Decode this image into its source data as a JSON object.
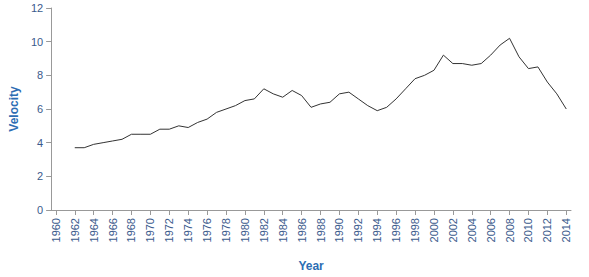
{
  "chart_data": {
    "type": "line",
    "x_label": "Year",
    "y_label": "Velocity",
    "categories": [
      "1960",
      null,
      "1962",
      null,
      "1964",
      null,
      "1966",
      null,
      "1968",
      null,
      "1970",
      null,
      "1972",
      null,
      "1974",
      null,
      "1976",
      null,
      "1978",
      null,
      "1980",
      null,
      "1982",
      null,
      "1984",
      null,
      "1986",
      null,
      "1988",
      null,
      "1990",
      null,
      "1992",
      null,
      "1994",
      null,
      "1996",
      null,
      "1998",
      null,
      "2000",
      null,
      "2002",
      null,
      "2004",
      null,
      "2006",
      null,
      "2008",
      null,
      "2010",
      null,
      "2012",
      null,
      "2014"
    ],
    "values": [
      null,
      null,
      3.7,
      3.7,
      3.9,
      4.0,
      4.1,
      4.2,
      4.5,
      4.5,
      4.5,
      4.8,
      4.8,
      5.0,
      4.9,
      5.2,
      5.4,
      5.8,
      6.0,
      6.2,
      6.5,
      6.6,
      7.2,
      6.9,
      6.7,
      7.1,
      6.8,
      6.1,
      6.3,
      6.4,
      6.9,
      7.0,
      6.6,
      6.2,
      5.9,
      6.1,
      6.6,
      7.2,
      7.8,
      8.0,
      8.3,
      9.2,
      8.7,
      8.7,
      8.6,
      8.7,
      9.2,
      9.8,
      10.2,
      9.1,
      8.4,
      8.5,
      7.6,
      6.9,
      6.0
    ],
    "color": "#333333",
    "ylim": [
      0,
      12
    ],
    "yticks": [
      0,
      2,
      4,
      6,
      8,
      10,
      12
    ],
    "grid": false
  }
}
